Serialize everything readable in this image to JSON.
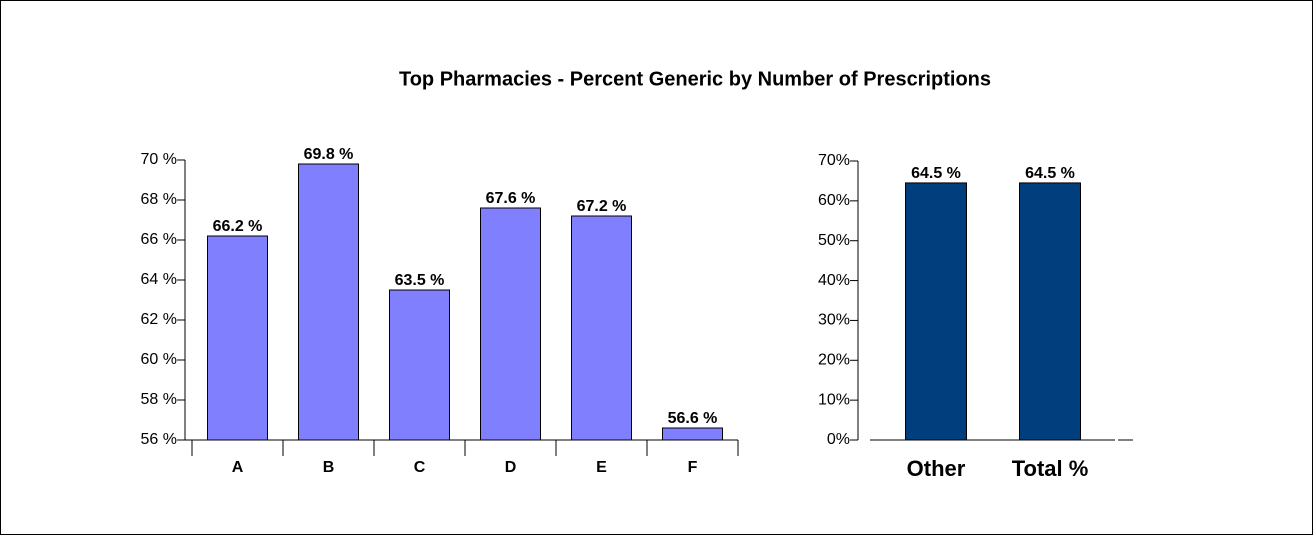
{
  "chart_data": [
    {
      "type": "bar",
      "title": "Top Pharmacies - Percent Generic by Number of Prescriptions",
      "categories": [
        "A",
        "B",
        "C",
        "D",
        "E",
        "F"
      ],
      "values": [
        66.2,
        69.8,
        63.5,
        67.6,
        67.2,
        56.6
      ],
      "value_labels": [
        "66.2 %",
        "69.8 %",
        "63.5 %",
        "67.6 %",
        "67.2 %",
        "56.6 %"
      ],
      "color": "#8080ff",
      "ylim": [
        56,
        70
      ],
      "yticks": [
        {
          "value": 56,
          "label": "56 %"
        },
        {
          "value": 58,
          "label": "58 %"
        },
        {
          "value": 60,
          "label": "60 %"
        },
        {
          "value": 62,
          "label": "62 %"
        },
        {
          "value": 64,
          "label": "64 %"
        },
        {
          "value": 66,
          "label": "66 %"
        },
        {
          "value": 68,
          "label": "68 %"
        },
        {
          "value": 70,
          "label": "70 %"
        }
      ]
    },
    {
      "type": "bar",
      "categories": [
        "Other",
        "Total %"
      ],
      "values": [
        64.5,
        64.5
      ],
      "value_labels": [
        "64.5 %",
        "64.5 %"
      ],
      "color": "#003e7e",
      "ylim": [
        0,
        70
      ],
      "yticks": [
        {
          "value": 0,
          "label": "0%"
        },
        {
          "value": 10,
          "label": "10%"
        },
        {
          "value": 20,
          "label": "20%"
        },
        {
          "value": 30,
          "label": "30%"
        },
        {
          "value": 40,
          "label": "40%"
        },
        {
          "value": 50,
          "label": "50%"
        },
        {
          "value": 60,
          "label": "60%"
        },
        {
          "value": 70,
          "label": "70%"
        }
      ]
    }
  ]
}
